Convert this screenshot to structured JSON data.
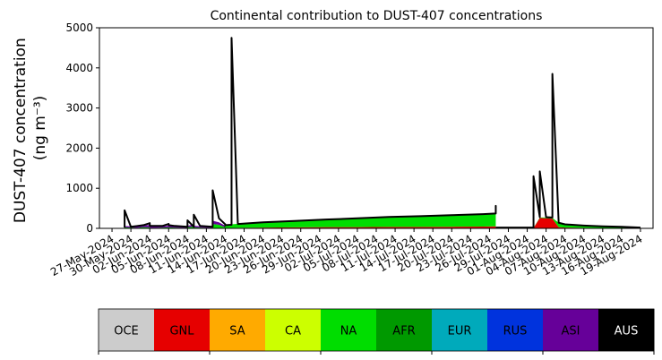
{
  "chart_data": {
    "type": "area",
    "title": "Continental contribution to DUST-407 concentrations",
    "ylabel_line1": "DUST-407 concentration",
    "ylabel_line2": "(ng m⁻³)",
    "ylim": [
      0,
      5000
    ],
    "yticks": [
      0,
      1000,
      2000,
      3000,
      4000,
      5000
    ],
    "x_range": [
      "2024-05-25",
      "2024-08-21"
    ],
    "xticks": [
      "27-May-2024",
      "30-May-2024",
      "02-Jun-2024",
      "05-Jun-2024",
      "08-Jun-2024",
      "11-Jun-2024",
      "14-Jun-2024",
      "17-Jun-2024",
      "20-Jun-2024",
      "23-Jun-2024",
      "26-Jun-2024",
      "29-Jun-2024",
      "02-Jul-2024",
      "05-Jul-2024",
      "08-Jul-2024",
      "11-Jul-2024",
      "14-Jul-2024",
      "17-Jul-2024",
      "20-Jul-2024",
      "23-Jul-2024",
      "26-Jul-2024",
      "29-Jul-2024",
      "01-Aug-2024",
      "04-Aug-2024",
      "07-Aug-2024",
      "10-Aug-2024",
      "13-Aug-2024",
      "16-Aug-2024",
      "19-Aug-2024"
    ],
    "legend_placement": "bottom",
    "legend": [
      {
        "name": "OCE",
        "color": "#cccccc",
        "text_color": "#000000"
      },
      {
        "name": "GNL",
        "color": "#e60000",
        "text_color": "#000000"
      },
      {
        "name": "SA",
        "color": "#ffaa00",
        "text_color": "#000000"
      },
      {
        "name": "CA",
        "color": "#ccff00",
        "text_color": "#000000"
      },
      {
        "name": "NA",
        "color": "#00dd00",
        "text_color": "#000000"
      },
      {
        "name": "AFR",
        "color": "#009900",
        "text_color": "#000000"
      },
      {
        "name": "EUR",
        "color": "#00aabb",
        "text_color": "#000000"
      },
      {
        "name": "RUS",
        "color": "#0033dd",
        "text_color": "#000000"
      },
      {
        "name": "ASI",
        "color": "#660099",
        "text_color": "#000000"
      },
      {
        "name": "AUS",
        "color": "#000000",
        "text_color": "#ffffff"
      }
    ],
    "segments": [
      {
        "dates": [
          "2024-05-29",
          "2024-05-29",
          "2024-05-30",
          "2024-05-31",
          "2024-06-01",
          "2024-06-02",
          "2024-06-02",
          "2024-06-03",
          "2024-06-04",
          "2024-06-05",
          "2024-06-05",
          "2024-06-06",
          "2024-06-07",
          "2024-06-08",
          "2024-06-08",
          "2024-06-09",
          "2024-06-09",
          "2024-06-10",
          "2024-06-11",
          "2024-06-12",
          "2024-06-12",
          "2024-06-13",
          "2024-06-14",
          "2024-06-14"
        ],
        "series": [
          {
            "name": "GNL",
            "values": [
              5,
              5,
              5,
              5,
              10,
              5,
              5,
              5,
              5,
              5,
              5,
              5,
              5,
              5,
              10,
              10,
              5,
              5,
              5,
              5,
              10,
              10,
              5,
              5
            ]
          },
          {
            "name": "NA",
            "values": [
              10,
              20,
              15,
              10,
              20,
              20,
              10,
              10,
              15,
              20,
              20,
              15,
              10,
              10,
              20,
              30,
              20,
              15,
              10,
              10,
              100,
              80,
              20,
              10
            ]
          },
          {
            "name": "ASI",
            "values": [
              20,
              30,
              30,
              30,
              40,
              60,
              40,
              40,
              30,
              40,
              50,
              40,
              30,
              20,
              30,
              60,
              40,
              30,
              20,
              20,
              80,
              60,
              40,
              20
            ]
          }
        ],
        "total": [
          20,
          450,
          40,
          60,
          80,
          130,
          60,
          60,
          60,
          110,
          80,
          60,
          50,
          40,
          200,
          40,
          340,
          60,
          50,
          40,
          950,
          250,
          100,
          30
        ]
      },
      {
        "dates": [
          "2024-06-14",
          "2024-06-15",
          "2024-06-15",
          "2024-06-16",
          "2024-06-20",
          "2024-06-25",
          "2024-06-30",
          "2024-07-05",
          "2024-07-10",
          "2024-07-15",
          "2024-07-20",
          "2024-07-25",
          "2024-07-27",
          "2024-07-27",
          "2024-07-27"
        ],
        "series": [
          {
            "name": "GNL",
            "values": [
              10,
              10,
              10,
              15,
              20,
              25,
              30,
              30,
              35,
              35,
              40,
              45,
              50,
              50,
              50
            ]
          },
          {
            "name": "NA",
            "values": [
              80,
              90,
              90,
              100,
              130,
              160,
              190,
              220,
              250,
              270,
              290,
              310,
              320,
              320,
              320
            ]
          }
        ],
        "total": [
          80,
          90,
          4750,
          110,
          150,
          185,
          220,
          250,
          285,
          305,
          330,
          355,
          370,
          560,
          370
        ]
      },
      {
        "dates": [
          "2024-07-27",
          "2024-07-30",
          "2024-08-02",
          "2024-08-02",
          "2024-08-03",
          "2024-08-03",
          "2024-08-04",
          "2024-08-05",
          "2024-08-05",
          "2024-08-06",
          "2024-08-07",
          "2024-08-10",
          "2024-08-13",
          "2024-08-16",
          "2024-08-19"
        ],
        "series": [
          {
            "name": "GNL",
            "values": [
              5,
              5,
              5,
              5,
              260,
              260,
              250,
              240,
              240,
              30,
              20,
              15,
              10,
              5,
              5
            ]
          },
          {
            "name": "NA",
            "values": [
              5,
              5,
              5,
              5,
              10,
              10,
              20,
              20,
              20,
              110,
              80,
              50,
              30,
              20,
              10
            ]
          }
        ],
        "total": [
          20,
          20,
          20,
          1300,
          280,
          1420,
          280,
          270,
          3850,
          140,
          100,
          70,
          50,
          40,
          20
        ]
      }
    ],
    "total_line_color": "#000000"
  }
}
